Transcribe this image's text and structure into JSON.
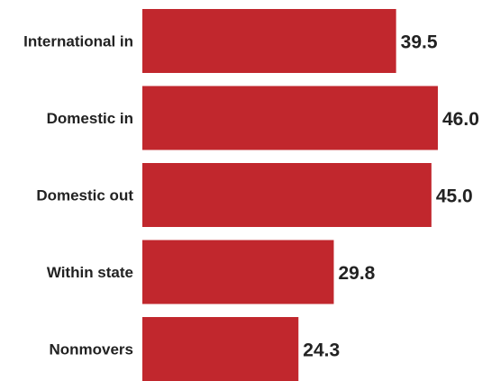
{
  "chart_data": {
    "type": "bar",
    "orientation": "horizontal",
    "categories": [
      "International in",
      "Domestic in",
      "Domestic out",
      "Within state",
      "Nonmovers"
    ],
    "values": [
      39.5,
      46.0,
      45.0,
      29.8,
      24.3
    ],
    "value_labels": [
      "39.5",
      "46.0",
      "45.0",
      "29.8",
      "24.3"
    ],
    "xlim": [
      0,
      46.0
    ],
    "grid": false,
    "legend": "none",
    "bar_color": "#c1272d"
  }
}
